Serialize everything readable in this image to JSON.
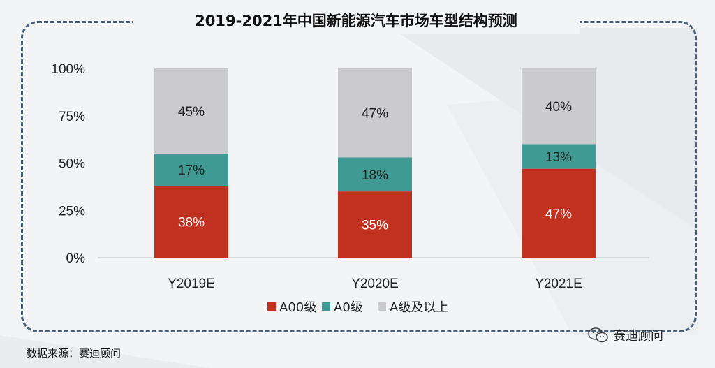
{
  "title": "2019-2021年中国新能源汽车市场车型结构预测",
  "source": "数据来源：赛迪顾问",
  "brand": "赛迪顾问",
  "chart_data": {
    "type": "bar",
    "stacked": true,
    "categories": [
      "Y2019E",
      "Y2020E",
      "Y2021E"
    ],
    "series": [
      {
        "name": "A00级",
        "values": [
          38,
          35,
          47
        ],
        "labels": [
          "38%",
          "35%",
          "47%"
        ],
        "color": "#c0311f"
      },
      {
        "name": "A0级",
        "values": [
          17,
          18,
          13
        ],
        "labels": [
          "17%",
          "18%",
          "13%"
        ],
        "color": "#3e9a93"
      },
      {
        "name": "A级及以上",
        "values": [
          45,
          47,
          40
        ],
        "labels": [
          "45%",
          "47%",
          "40%"
        ],
        "color": "#cbcbcd"
      }
    ],
    "ylim": [
      0,
      100
    ],
    "yticks": [
      "0%",
      "25%",
      "50%",
      "75%",
      "100%"
    ],
    "legend_position": "bottom",
    "grid": false
  }
}
